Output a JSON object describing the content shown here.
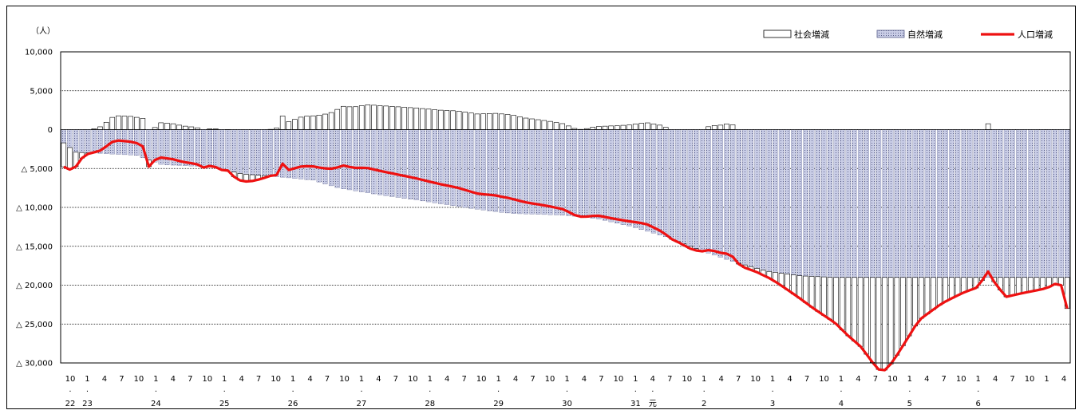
{
  "chart_data": {
    "type": "bar+line",
    "unit_label": "（人）",
    "legend": [
      {
        "label": "社会増減",
        "kind": "hollow-bar",
        "color": "#ffffff"
      },
      {
        "label": "自然増減",
        "kind": "dotted-bar",
        "color": "#c9cde6"
      },
      {
        "label": "人口増減",
        "kind": "line",
        "color": "#ee1111"
      }
    ],
    "ylim": [
      -30000,
      10000
    ],
    "y_ticks": [
      {
        "value": 10000,
        "label": "10,000"
      },
      {
        "value": 5000,
        "label": "5,000"
      },
      {
        "value": 0,
        "label": "0"
      },
      {
        "value": -5000,
        "label": "△ 5,000"
      },
      {
        "value": -10000,
        "label": "△ 10,000"
      },
      {
        "value": -15000,
        "label": "△ 15,000"
      },
      {
        "value": -20000,
        "label": "△ 20,000"
      },
      {
        "value": -25000,
        "label": "△ 25,000"
      },
      {
        "value": -30000,
        "label": "△ 30,000"
      }
    ],
    "x_month_labels": [
      "10",
      "1",
      "4",
      "7",
      "10",
      "1",
      "4",
      "7",
      "10",
      "1",
      "4",
      "7",
      "10",
      "1",
      "4",
      "7",
      "10",
      "1",
      "4",
      "7",
      "10",
      "1",
      "4",
      "7",
      "10",
      "1",
      "4",
      "7",
      "10",
      "1",
      "4",
      "7",
      "10",
      "1",
      "4",
      "7",
      "10",
      "1",
      "4",
      "7",
      "10",
      "1",
      "4",
      "7",
      "10",
      "1",
      "4",
      "7",
      "10",
      "1",
      "4",
      "7",
      "10",
      "1",
      "4",
      "7",
      "10",
      "1",
      "4"
    ],
    "x_year_labels": [
      {
        "pos": 0,
        "label": "22"
      },
      {
        "pos": 1,
        "label": "23"
      },
      {
        "pos": 5,
        "label": "24"
      },
      {
        "pos": 9,
        "label": "25"
      },
      {
        "pos": 13,
        "label": "26"
      },
      {
        "pos": 17,
        "label": "27"
      },
      {
        "pos": 21,
        "label": "28"
      },
      {
        "pos": 25,
        "label": "29"
      },
      {
        "pos": 29,
        "label": "30"
      },
      {
        "pos": 33,
        "label": "31"
      },
      {
        "pos": 34,
        "label": "元"
      },
      {
        "pos": 37,
        "label": "2"
      },
      {
        "pos": 41,
        "label": "3"
      },
      {
        "pos": 45,
        "label": "4"
      },
      {
        "pos": 49,
        "label": "5"
      },
      {
        "pos": 53,
        "label": "6"
      }
    ],
    "year_dot_positions": [
      0,
      1,
      5,
      9,
      13,
      17,
      21,
      25,
      29,
      33,
      34,
      37,
      41,
      45,
      49,
      53
    ],
    "monthly_points": 166,
    "natural_anchors": [
      [
        0,
        -1400
      ],
      [
        9,
        -2900
      ],
      [
        18,
        -3000
      ],
      [
        45,
        -3300
      ],
      [
        60,
        -4500
      ],
      [
        90,
        -4800
      ],
      [
        108,
        -5700
      ],
      [
        126,
        -6000
      ],
      [
        150,
        -6500
      ],
      [
        165,
        -7500
      ],
      [
        190,
        -8400
      ],
      [
        210,
        -9000
      ],
      [
        240,
        -10000
      ],
      [
        260,
        -10600
      ],
      [
        270,
        -10800
      ],
      [
        300,
        -11000
      ],
      [
        320,
        -11500
      ],
      [
        340,
        -12500
      ],
      [
        360,
        -13800
      ],
      [
        380,
        -15500
      ],
      [
        400,
        -17000
      ],
      [
        420,
        -18200
      ],
      [
        440,
        -18800
      ],
      [
        460,
        -19000
      ]
    ],
    "social_anchors": [
      [
        0,
        -3200
      ],
      [
        6,
        -2800
      ],
      [
        14,
        -300
      ],
      [
        24,
        400
      ],
      [
        32,
        1800
      ],
      [
        42,
        1700
      ],
      [
        50,
        1400
      ],
      [
        52,
        -1000
      ],
      [
        58,
        900
      ],
      [
        66,
        800
      ],
      [
        72,
        500
      ],
      [
        80,
        300
      ],
      [
        82,
        200
      ],
      [
        84,
        -200
      ],
      [
        90,
        200
      ],
      [
        96,
        -100
      ],
      [
        98,
        700
      ],
      [
        100,
        -300
      ],
      [
        104,
        -700
      ],
      [
        108,
        -1000
      ],
      [
        114,
        -800
      ],
      [
        120,
        -400
      ],
      [
        124,
        0
      ],
      [
        126,
        100
      ],
      [
        130,
        300
      ],
      [
        132,
        1800
      ],
      [
        134,
        900
      ],
      [
        144,
        1700
      ],
      [
        152,
        1800
      ],
      [
        160,
        2100
      ],
      [
        168,
        3000
      ],
      [
        174,
        2900
      ],
      [
        182,
        3200
      ],
      [
        196,
        3000
      ],
      [
        210,
        2800
      ],
      [
        226,
        2500
      ],
      [
        236,
        2400
      ],
      [
        248,
        2000
      ],
      [
        258,
        2100
      ],
      [
        268,
        1900
      ],
      [
        276,
        1500
      ],
      [
        290,
        1100
      ],
      [
        300,
        700
      ],
      [
        304,
        200
      ],
      [
        310,
        0
      ],
      [
        318,
        400
      ],
      [
        330,
        500
      ],
      [
        338,
        600
      ],
      [
        348,
        900
      ],
      [
        358,
        500
      ],
      [
        362,
        0
      ],
      [
        368,
        -100
      ],
      [
        374,
        -300
      ],
      [
        380,
        -200
      ],
      [
        386,
        500
      ],
      [
        394,
        600
      ],
      [
        398,
        900
      ],
      [
        404,
        -300
      ],
      [
        414,
        -500
      ],
      [
        422,
        -900
      ],
      [
        430,
        -1800
      ],
      [
        440,
        -3000
      ],
      [
        448,
        -4200
      ],
      [
        460,
        -5800
      ],
      [
        468,
        -7500
      ],
      [
        476,
        -9000
      ],
      [
        482,
        -10800
      ],
      [
        488,
        -12300
      ],
      [
        494,
        -11000
      ],
      [
        500,
        -9000
      ],
      [
        510,
        -5500
      ],
      [
        524,
        -3300
      ],
      [
        536,
        -2000
      ],
      [
        546,
        -1200
      ],
      [
        548,
        -200
      ],
      [
        550,
        1200
      ],
      [
        556,
        -1000
      ],
      [
        562,
        -2500
      ],
      [
        572,
        -2000
      ],
      [
        586,
        -1400
      ],
      [
        594,
        -500
      ],
      [
        598,
        -4000
      ],
      [
        600,
        -4000
      ]
    ]
  }
}
